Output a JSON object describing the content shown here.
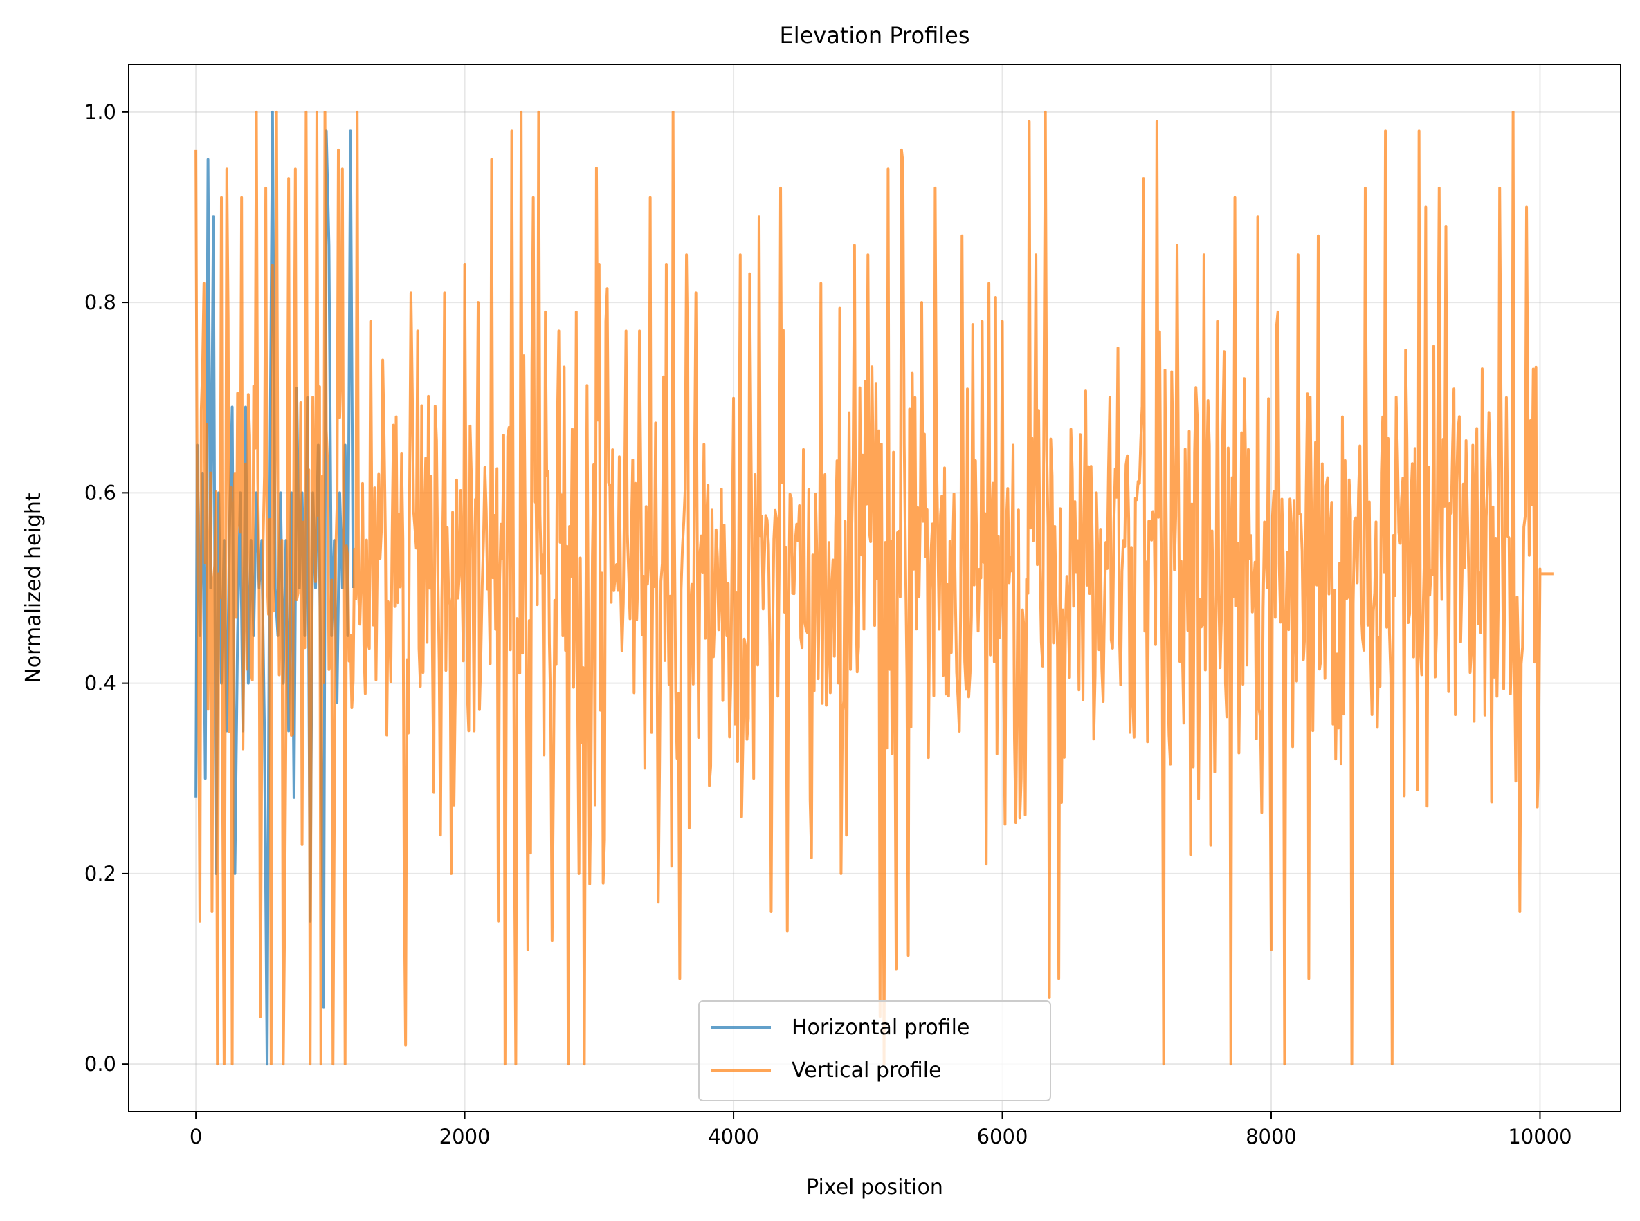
{
  "chart_data": {
    "type": "line",
    "title": "Elevation Profiles",
    "xlabel": "Pixel position",
    "ylabel": "Normalized height",
    "xlim": [
      -500,
      10600
    ],
    "ylim": [
      -0.05,
      1.05
    ],
    "x_ticks": [
      0,
      2000,
      4000,
      6000,
      8000,
      10000
    ],
    "x_tick_labels": [
      "0",
      "2000",
      "4000",
      "6000",
      "8000",
      "10000"
    ],
    "y_ticks": [
      0.0,
      0.2,
      0.4,
      0.6,
      0.8,
      1.0
    ],
    "y_tick_labels": [
      "0.0",
      "0.2",
      "0.4",
      "0.6",
      "0.8",
      "1.0"
    ],
    "grid": true,
    "legend_position": "lower center",
    "series": [
      {
        "name": "Horizontal profile",
        "color": "#1f77b4",
        "opacity": 0.7,
        "x_range": [
          0,
          1200
        ],
        "points": [
          [
            0,
            0.28
          ],
          [
            10,
            0.65
          ],
          [
            30,
            0.45
          ],
          [
            50,
            0.62
          ],
          [
            70,
            0.3
          ],
          [
            90,
            0.95
          ],
          [
            110,
            0.5
          ],
          [
            130,
            0.89
          ],
          [
            150,
            0.2
          ],
          [
            170,
            0.6
          ],
          [
            190,
            0.4
          ],
          [
            210,
            0.55
          ],
          [
            230,
            0.35
          ],
          [
            250,
            0.56
          ],
          [
            270,
            0.69
          ],
          [
            290,
            0.2
          ],
          [
            310,
            0.45
          ],
          [
            330,
            0.6
          ],
          [
            350,
            0.35
          ],
          [
            370,
            0.69
          ],
          [
            390,
            0.4
          ],
          [
            410,
            0.55
          ],
          [
            430,
            0.45
          ],
          [
            450,
            0.6
          ],
          [
            470,
            0.5
          ],
          [
            490,
            0.55
          ],
          [
            510,
            0.35
          ],
          [
            530,
            0.0
          ],
          [
            550,
            0.6
          ],
          [
            570,
            1.0
          ],
          [
            590,
            0.5
          ],
          [
            610,
            0.45
          ],
          [
            630,
            0.6
          ],
          [
            650,
            0.4
          ],
          [
            670,
            0.55
          ],
          [
            690,
            0.35
          ],
          [
            710,
            0.6
          ],
          [
            730,
            0.28
          ],
          [
            750,
            0.71
          ],
          [
            770,
            0.5
          ],
          [
            790,
            0.6
          ],
          [
            810,
            0.45
          ],
          [
            830,
            0.7
          ],
          [
            850,
            0.15
          ],
          [
            870,
            0.6
          ],
          [
            890,
            0.5
          ],
          [
            910,
            0.65
          ],
          [
            930,
            0.4
          ],
          [
            950,
            0.06
          ],
          [
            970,
            0.98
          ],
          [
            990,
            0.86
          ],
          [
            1010,
            0.45
          ],
          [
            1030,
            0.55
          ],
          [
            1050,
            0.38
          ],
          [
            1070,
            0.6
          ],
          [
            1090,
            0.5
          ],
          [
            1110,
            0.65
          ],
          [
            1130,
            0.45
          ],
          [
            1150,
            0.98
          ],
          [
            1170,
            0.5
          ]
        ]
      },
      {
        "name": "Vertical profile",
        "color": "#ff7f0e",
        "opacity": 0.7,
        "x_range": [
          0,
          10100
        ],
        "seed": 12345,
        "step": 10,
        "tail_value": 0.515,
        "tail_start": 10000,
        "peaks": [
          [
            0,
            0.96
          ],
          [
            25,
            0.15
          ],
          [
            60,
            0.82
          ],
          [
            120,
            0.16
          ],
          [
            160,
            0.0
          ],
          [
            190,
            0.91
          ],
          [
            210,
            0.0
          ],
          [
            230,
            0.94
          ],
          [
            270,
            0.0
          ],
          [
            340,
            0.91
          ],
          [
            400,
            0.66
          ],
          [
            450,
            1.0
          ],
          [
            480,
            0.05
          ],
          [
            520,
            0.92
          ],
          [
            560,
            0.0
          ],
          [
            600,
            1.0
          ],
          [
            650,
            0.0
          ],
          [
            690,
            0.93
          ],
          [
            740,
            0.94
          ],
          [
            820,
            1.0
          ],
          [
            850,
            0.0
          ],
          [
            900,
            1.0
          ],
          [
            930,
            0.0
          ],
          [
            960,
            1.0
          ],
          [
            1020,
            0.0
          ],
          [
            1060,
            0.96
          ],
          [
            1090,
            0.94
          ],
          [
            1110,
            0.0
          ],
          [
            1200,
            1.0
          ],
          [
            1300,
            0.78
          ],
          [
            1560,
            0.02
          ],
          [
            1600,
            0.81
          ],
          [
            1650,
            0.77
          ],
          [
            1850,
            0.81
          ],
          [
            1900,
            0.2
          ],
          [
            2000,
            0.84
          ],
          [
            2100,
            0.8
          ],
          [
            2200,
            0.95
          ],
          [
            2250,
            0.15
          ],
          [
            2300,
            0.0
          ],
          [
            2350,
            0.98
          ],
          [
            2380,
            0.0
          ],
          [
            2420,
            1.0
          ],
          [
            2470,
            0.12
          ],
          [
            2510,
            0.91
          ],
          [
            2550,
            1.0
          ],
          [
            2600,
            0.79
          ],
          [
            2650,
            0.13
          ],
          [
            2700,
            0.77
          ],
          [
            2770,
            0.0
          ],
          [
            2830,
            0.79
          ],
          [
            2850,
            0.2
          ],
          [
            2890,
            0.0
          ],
          [
            3000,
            0.84
          ],
          [
            3030,
            0.19
          ],
          [
            3050,
            0.78
          ],
          [
            3200,
            0.77
          ],
          [
            3260,
            0.39
          ],
          [
            3300,
            0.77
          ],
          [
            3380,
            0.91
          ],
          [
            3440,
            0.17
          ],
          [
            3500,
            0.84
          ],
          [
            3550,
            1.0
          ],
          [
            3600,
            0.09
          ],
          [
            3650,
            0.85
          ],
          [
            3720,
            0.81
          ],
          [
            4050,
            0.85
          ],
          [
            4120,
            0.83
          ],
          [
            4150,
            0.3
          ],
          [
            4190,
            0.89
          ],
          [
            4280,
            0.16
          ],
          [
            4350,
            0.92
          ],
          [
            4400,
            0.14
          ],
          [
            4650,
            0.82
          ],
          [
            4800,
            0.2
          ],
          [
            4900,
            0.86
          ],
          [
            5000,
            0.85
          ],
          [
            5090,
            0.05
          ],
          [
            5120,
            0.0
          ],
          [
            5150,
            0.94
          ],
          [
            5210,
            0.1
          ],
          [
            5250,
            0.96
          ],
          [
            5350,
            0.7
          ],
          [
            5400,
            0.8
          ],
          [
            5500,
            0.92
          ],
          [
            5700,
            0.87
          ],
          [
            5850,
            0.78
          ],
          [
            5880,
            0.21
          ],
          [
            5900,
            0.82
          ],
          [
            6000,
            0.78
          ],
          [
            6140,
            0.3
          ],
          [
            6200,
            0.99
          ],
          [
            6250,
            0.85
          ],
          [
            6320,
            1.0
          ],
          [
            6350,
            0.07
          ],
          [
            6420,
            0.09
          ],
          [
            6700,
            0.6
          ],
          [
            6800,
            0.7
          ],
          [
            7050,
            0.93
          ],
          [
            7100,
            0.57
          ],
          [
            7150,
            0.99
          ],
          [
            7200,
            0.0
          ],
          [
            7300,
            0.86
          ],
          [
            7400,
            0.22
          ],
          [
            7500,
            0.85
          ],
          [
            7550,
            0.23
          ],
          [
            7600,
            0.78
          ],
          [
            7700,
            0.0
          ],
          [
            7730,
            0.91
          ],
          [
            7800,
            0.72
          ],
          [
            7900,
            0.89
          ],
          [
            8000,
            0.12
          ],
          [
            8050,
            0.79
          ],
          [
            8100,
            0.0
          ],
          [
            8200,
            0.85
          ],
          [
            8280,
            0.09
          ],
          [
            8350,
            0.87
          ],
          [
            8450,
            0.59
          ],
          [
            8600,
            0.0
          ],
          [
            8700,
            0.92
          ],
          [
            8850,
            0.98
          ],
          [
            8900,
            0.0
          ],
          [
            9100,
            0.98
          ],
          [
            9150,
            0.9
          ],
          [
            9250,
            0.92
          ],
          [
            9300,
            0.88
          ],
          [
            9400,
            0.68
          ],
          [
            9500,
            0.65
          ],
          [
            9700,
            0.92
          ],
          [
            9750,
            0.7
          ],
          [
            9800,
            1.0
          ],
          [
            9850,
            0.16
          ],
          [
            9900,
            0.9
          ],
          [
            9950,
            0.73
          ],
          [
            9980,
            0.27
          ],
          [
            10000,
            0.52
          ]
        ]
      }
    ]
  }
}
